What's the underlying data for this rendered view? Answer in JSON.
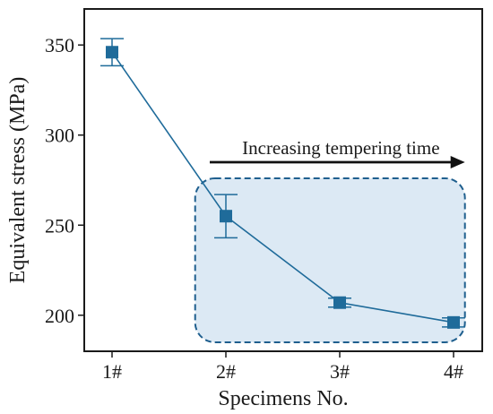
{
  "chart_data": {
    "type": "line",
    "categories": [
      "1#",
      "2#",
      "3#",
      "4#"
    ],
    "series": [
      {
        "values": [
          346,
          255,
          207,
          196
        ],
        "error": [
          7.5,
          12,
          2.5,
          2.5
        ]
      }
    ],
    "xlabel": "Specimens No.",
    "ylabel": "Equivalent stress (MPa)",
    "ylim": [
      180,
      370
    ],
    "yticks": [
      200,
      250,
      300,
      350
    ],
    "grid": false,
    "annotation": {
      "text": "Increasing tempering time",
      "arrow_from_category": 1,
      "arrow_to_category": 3.1,
      "highlight_box": {
        "from_category": 0.73,
        "to_category": 3.1,
        "y_from": 185,
        "y_to": 276
      }
    },
    "colors": {
      "series": "#1f6b9a",
      "box_fill": "#dce9f4",
      "box_stroke": "#1f5f8e",
      "axis": "#1a1a1a"
    }
  }
}
